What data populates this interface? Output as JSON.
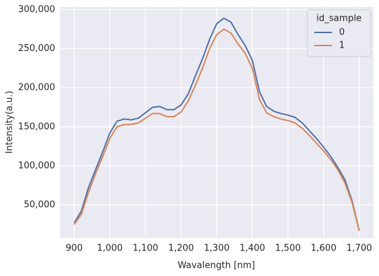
{
  "chart_data": {
    "type": "line",
    "x_label": "Wavalength [nm]",
    "y_label": "Intensity(a.u.)",
    "x": [
      900,
      920,
      940,
      960,
      980,
      1000,
      1020,
      1040,
      1060,
      1080,
      1100,
      1120,
      1140,
      1160,
      1180,
      1200,
      1220,
      1240,
      1260,
      1280,
      1300,
      1320,
      1340,
      1360,
      1380,
      1400,
      1420,
      1440,
      1460,
      1480,
      1500,
      1520,
      1540,
      1560,
      1580,
      1600,
      1620,
      1640,
      1660,
      1680,
      1700
    ],
    "series": [
      {
        "name": "0",
        "color": "#4c72b0",
        "values": [
          27000,
          42000,
          72000,
          95000,
          118000,
          142000,
          157000,
          160000,
          159000,
          161000,
          168000,
          175000,
          176000,
          172000,
          172000,
          178000,
          192000,
          215000,
          237000,
          262000,
          282000,
          289000,
          284000,
          268000,
          254000,
          235000,
          195000,
          176000,
          170000,
          167000,
          165000,
          162000,
          155000,
          145000,
          135000,
          124000,
          112000,
          98000,
          82000,
          55000,
          17000
        ]
      },
      {
        "name": "1",
        "color": "#dd8452",
        "values": [
          25000,
          38000,
          66000,
          90000,
          112000,
          135000,
          150000,
          153000,
          153000,
          155000,
          161000,
          167000,
          167000,
          163000,
          163000,
          169000,
          183000,
          203000,
          225000,
          250000,
          268000,
          275000,
          270000,
          256000,
          244000,
          225000,
          185000,
          168000,
          163000,
          160000,
          158000,
          155000,
          148000,
          139000,
          129000,
          119000,
          108000,
          95000,
          78000,
          53000,
          17000
        ]
      }
    ],
    "legend_title": "id_sample",
    "legend_position": "upper right",
    "xlim": [
      860,
      1740
    ],
    "xticks": [
      900,
      {
        "value": 1000,
        "label": "1,000"
      },
      {
        "value": 1100,
        "label": "1,100"
      },
      {
        "value": 1200,
        "label": "1,200"
      },
      {
        "value": 1300,
        "label": "1,300"
      },
      {
        "value": 1400,
        "label": "1,400"
      },
      {
        "value": 1500,
        "label": "1,500"
      },
      {
        "value": 1600,
        "label": "1,600"
      },
      {
        "value": 1700,
        "label": "1,700"
      }
    ],
    "ylim": [
      7600,
      303500
    ],
    "yticks": [
      {
        "value": 50000,
        "label": "50,000"
      },
      {
        "value": 100000,
        "label": "100,000"
      },
      {
        "value": 150000,
        "label": "150,000"
      },
      {
        "value": 200000,
        "label": "200,000"
      },
      {
        "value": 250000,
        "label": "250,000"
      },
      {
        "value": 300000,
        "label": "300,000"
      }
    ],
    "grid": true,
    "background": "#eaeaf2"
  }
}
